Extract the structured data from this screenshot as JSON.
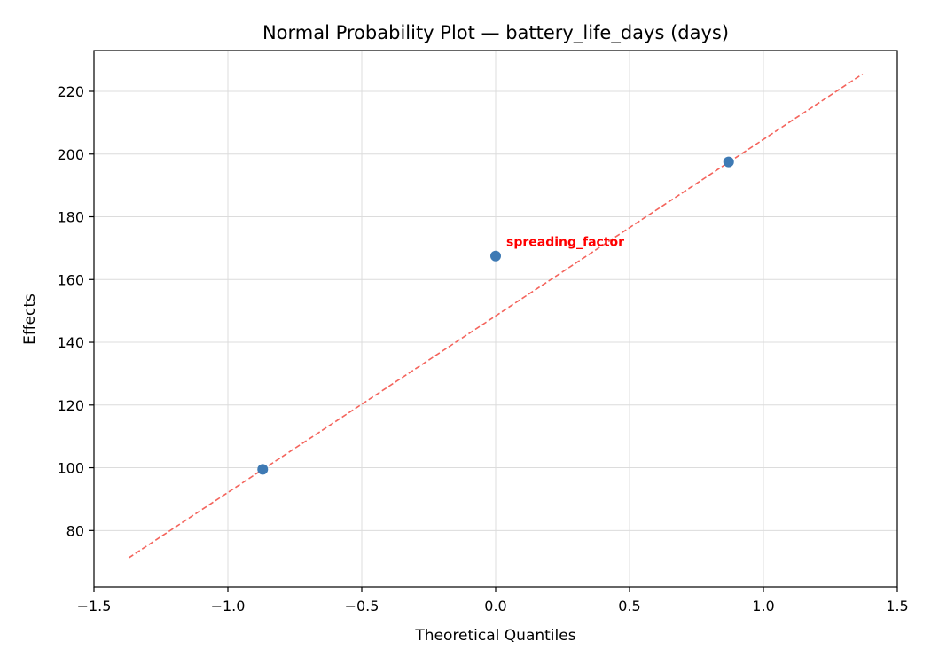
{
  "chart_data": {
    "type": "scatter",
    "title": "Normal Probability Plot — battery_life_days (days)",
    "xlabel": "Theoretical Quantiles",
    "ylabel": "Effects",
    "xlim": [
      -1.5,
      1.5
    ],
    "ylim": [
      62,
      233
    ],
    "xticks": [
      -1.5,
      -1.0,
      -0.5,
      0.0,
      0.5,
      1.0,
      1.5
    ],
    "xtick_labels": [
      "−1.5",
      "−1.0",
      "−0.5",
      "0.0",
      "0.5",
      "1.0",
      "1.5"
    ],
    "yticks": [
      80,
      100,
      120,
      140,
      160,
      180,
      200,
      220
    ],
    "grid": true,
    "points": [
      {
        "x": -0.87,
        "y": 99.5,
        "label": ""
      },
      {
        "x": 0.0,
        "y": 167.5,
        "label": "spreading_factor"
      },
      {
        "x": 0.87,
        "y": 197.5,
        "label": ""
      }
    ],
    "reference_line": {
      "x": [
        -1.37,
        1.37
      ],
      "y": [
        71.3,
        225.5
      ],
      "style": "dashed",
      "color": "#f4645c"
    },
    "point_color": "#3e7ab4",
    "annotation_color": "#ff0000"
  }
}
